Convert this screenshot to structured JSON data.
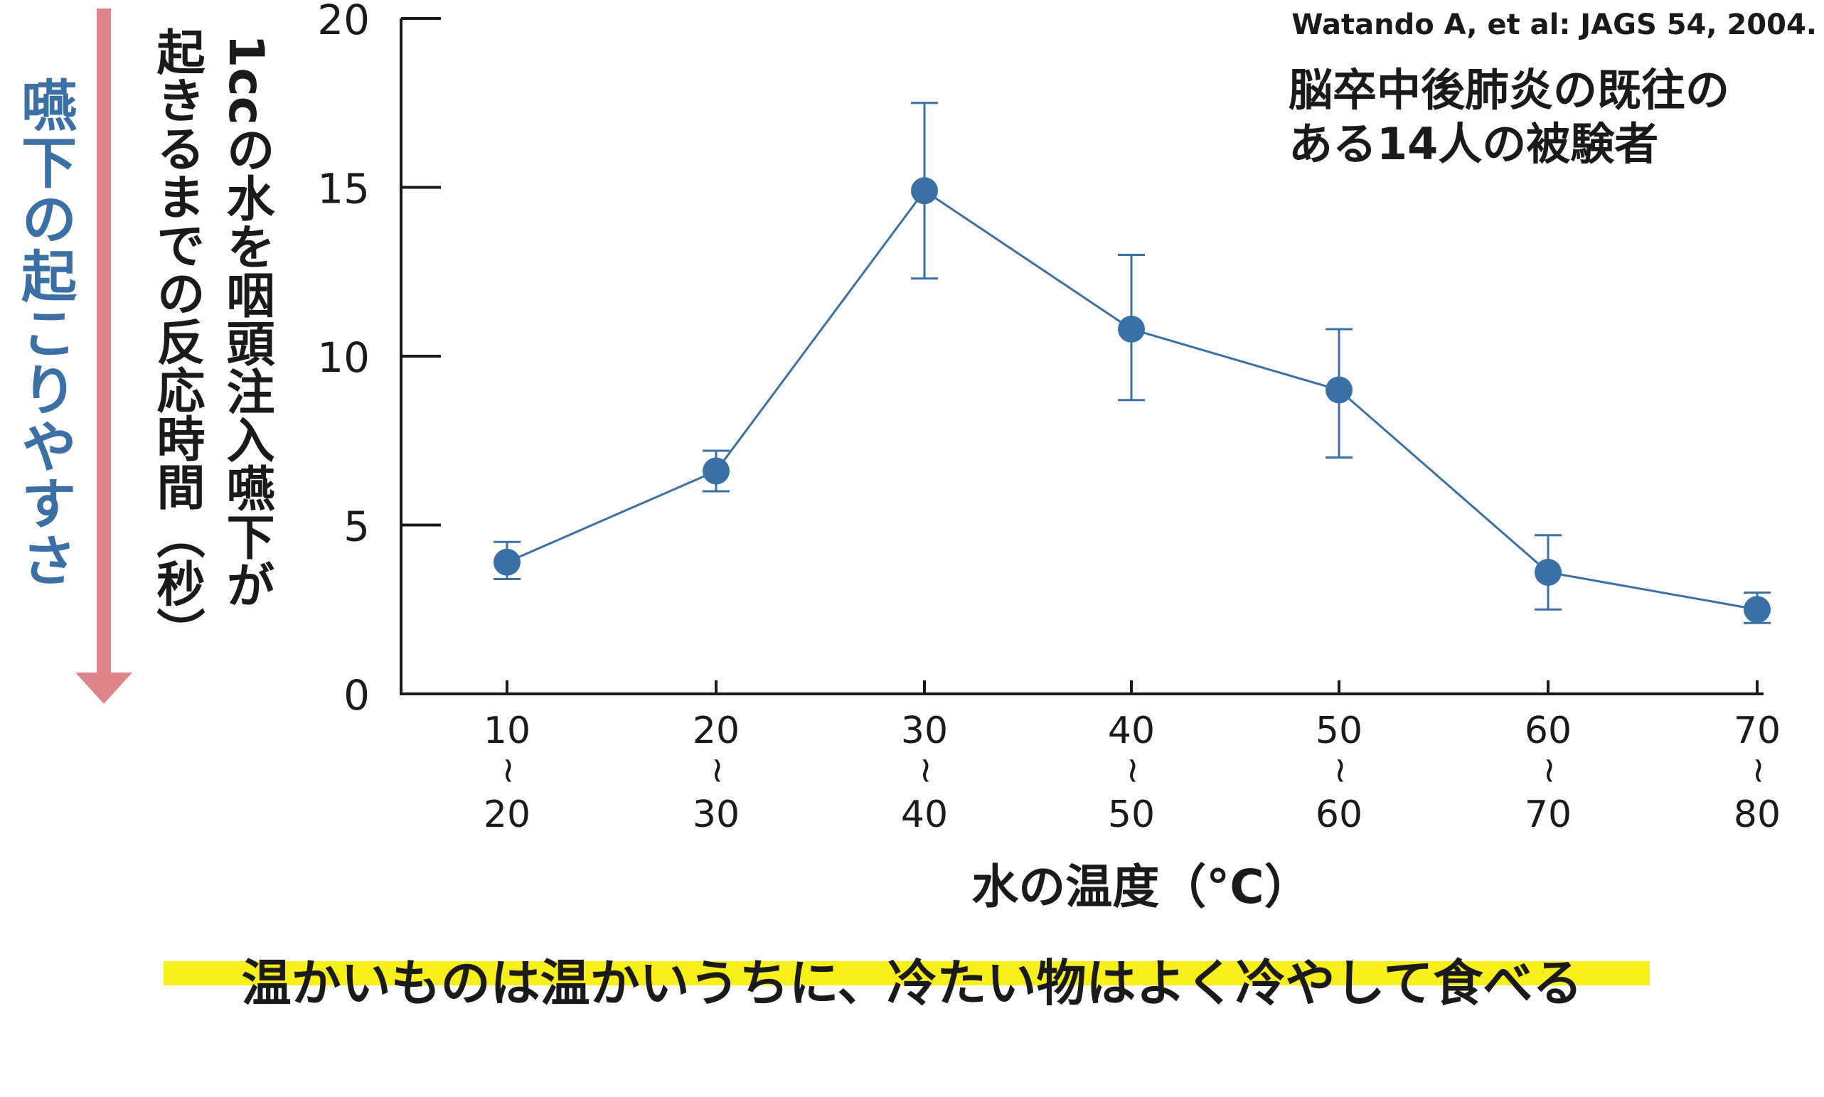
{
  "chart_data": {
    "type": "line",
    "citation": "Watando A, et al: JAGS  54, 2004.",
    "subject_note": [
      "脳卒中後肺炎の既往の",
      "ある14人の被験者"
    ],
    "ylabel_lines": [
      "1ccの水を咽頭注入嚥下が",
      "起きるまでの反応時間（秒）"
    ],
    "arrow_label": "嚥下の起こりやすさ",
    "xlabel": "水の温度（°C）",
    "ylim": [
      0,
      20
    ],
    "yticks": [
      0,
      5,
      10,
      15,
      20
    ],
    "categories": [
      {
        "top": "10",
        "sep": "~",
        "bottom": "20"
      },
      {
        "top": "20",
        "sep": "~",
        "bottom": "30"
      },
      {
        "top": "30",
        "sep": "~",
        "bottom": "40"
      },
      {
        "top": "40",
        "sep": "~",
        "bottom": "50"
      },
      {
        "top": "50",
        "sep": "~",
        "bottom": "60"
      },
      {
        "top": "60",
        "sep": "~",
        "bottom": "70"
      },
      {
        "top": "70",
        "sep": "~",
        "bottom": "80"
      }
    ],
    "values": [
      3.9,
      6.6,
      14.9,
      10.8,
      9.0,
      3.6,
      2.5
    ],
    "error_low": [
      3.4,
      6.0,
      12.3,
      8.7,
      7.0,
      2.5,
      2.1
    ],
    "error_high": [
      4.5,
      7.2,
      17.5,
      13.0,
      10.8,
      4.7,
      3.0
    ],
    "grid": false,
    "colors": {
      "series": "#3a70a5",
      "arrow": "#e0848c",
      "arrow_label": "#3a70a5",
      "highlight": "#f7ee1a"
    }
  },
  "caption": "温かいものは温かいうちに、冷たい物はよく冷やして食べる"
}
